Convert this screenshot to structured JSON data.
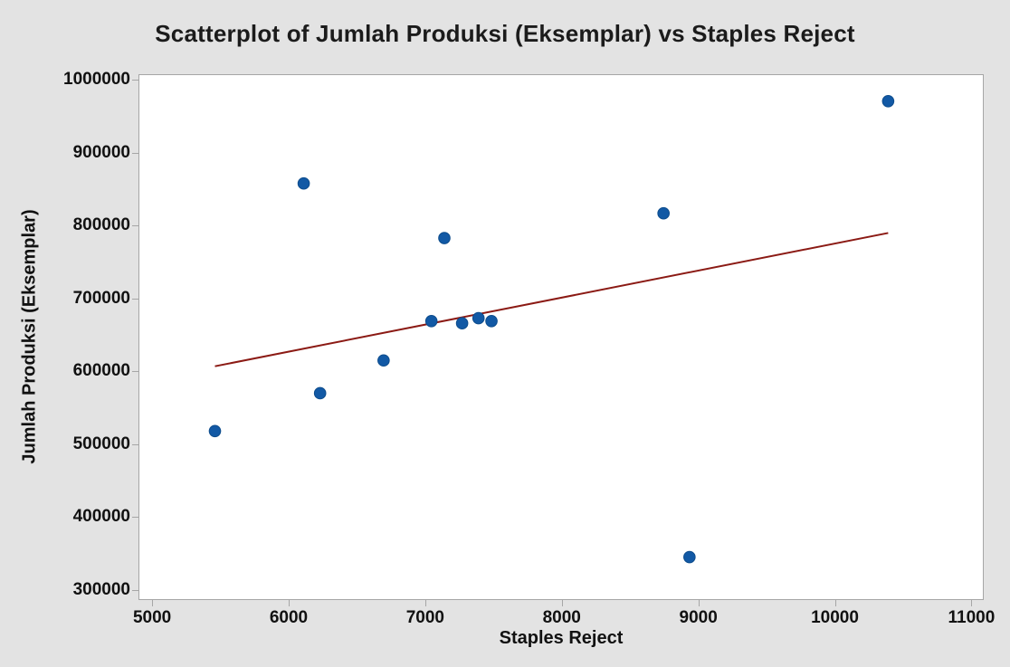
{
  "title": "Scatterplot of Jumlah Produksi (Eksemplar) vs Staples Reject",
  "colors": {
    "background": "#e3e3e3",
    "plot_background": "#ffffff",
    "frame": "#a6a6a6",
    "point_fill": "#1259a5",
    "point_edge": "#0d4c8c",
    "fit_line": "#8b1a14",
    "text": "#111111"
  },
  "chart_data": {
    "type": "scatter",
    "title": "Scatterplot of Jumlah Produksi (Eksemplar) vs Staples Reject",
    "xlabel": "Staples Reject",
    "ylabel": "Jumlah Produksi (Eksemplar)",
    "xlim": [
      4900,
      11090
    ],
    "ylim": [
      286000,
      1008000
    ],
    "x_ticks": [
      5000,
      6000,
      7000,
      8000,
      9000,
      10000,
      11000
    ],
    "y_ticks": [
      300000,
      400000,
      500000,
      600000,
      700000,
      800000,
      900000,
      1000000
    ],
    "grid": false,
    "legend": false,
    "series": [
      {
        "name": "Jumlah Produksi (Eksemplar)",
        "points": [
          {
            "x": 5460,
            "y": 518000
          },
          {
            "x": 6110,
            "y": 858000
          },
          {
            "x": 6230,
            "y": 570000
          },
          {
            "x": 6695,
            "y": 615000
          },
          {
            "x": 7045,
            "y": 669000
          },
          {
            "x": 7140,
            "y": 783000
          },
          {
            "x": 7270,
            "y": 666000
          },
          {
            "x": 7390,
            "y": 673000
          },
          {
            "x": 7485,
            "y": 669000
          },
          {
            "x": 8745,
            "y": 817000
          },
          {
            "x": 8935,
            "y": 345000
          },
          {
            "x": 10390,
            "y": 971000
          }
        ]
      }
    ],
    "fit_line": {
      "x1": 5460,
      "y1": 607000,
      "x2": 10390,
      "y2": 790000
    }
  }
}
